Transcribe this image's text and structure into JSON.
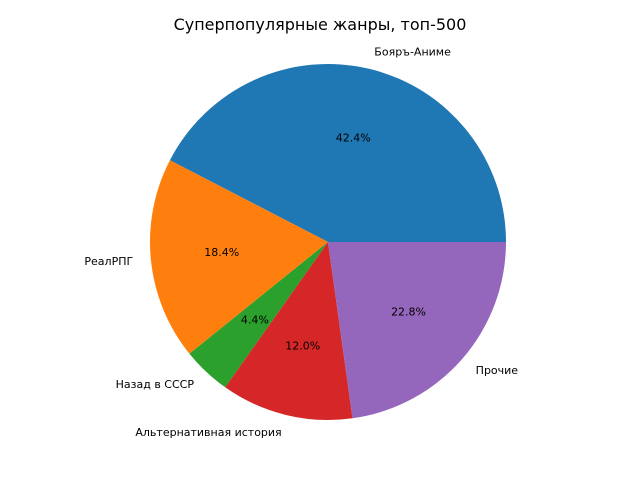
{
  "chart_data": {
    "type": "pie",
    "title": "Суперпопулярные жанры, топ-500",
    "start_angle_deg": 0,
    "direction": "counterclockwise",
    "slices": [
      {
        "label": "Бояръ-Аниме",
        "value": 42.4,
        "pct_text": "42.4%",
        "color": "#1f77b4"
      },
      {
        "label": "РеалРПГ",
        "value": 18.4,
        "pct_text": "18.4%",
        "color": "#ff7f0e"
      },
      {
        "label": "Назад в СССР",
        "value": 4.4,
        "pct_text": "4.4%",
        "color": "#2ca02c"
      },
      {
        "label": "Альтернативная история",
        "value": 12.0,
        "pct_text": "12.0%",
        "color": "#d62728"
      },
      {
        "label": "Прочие",
        "value": 22.8,
        "pct_text": "22.8%",
        "color": "#9467bd"
      }
    ]
  }
}
